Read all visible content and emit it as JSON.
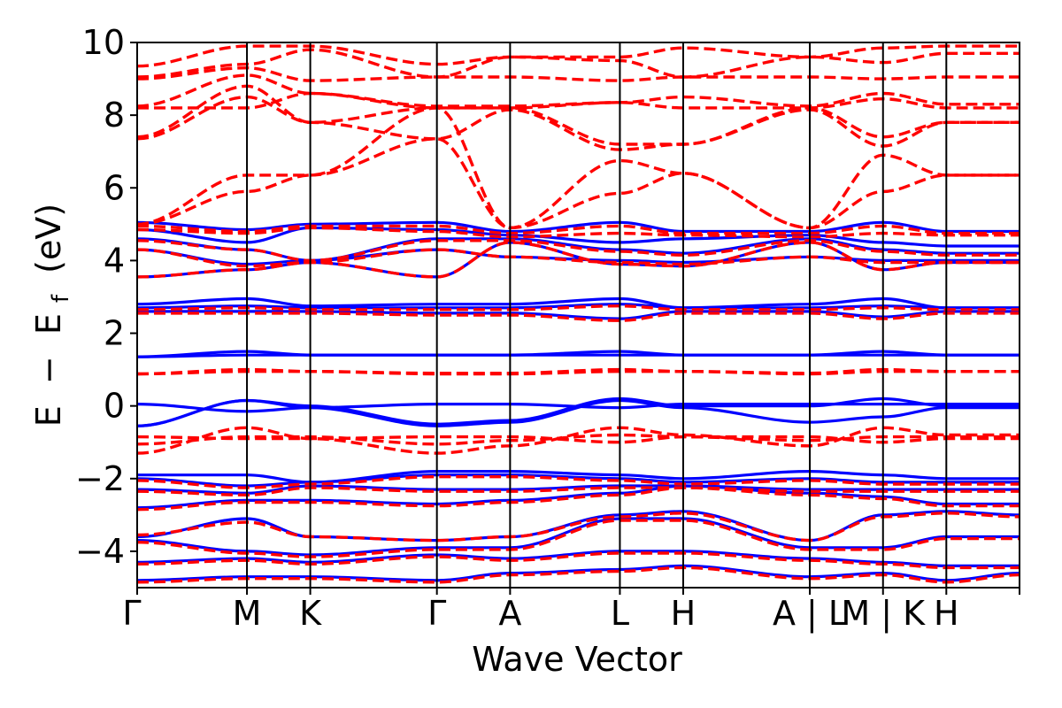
{
  "chart_data": {
    "type": "line",
    "title": "",
    "xlabel": "Wave Vector",
    "ylabel_parts": {
      "e": "E",
      "minus": "−",
      "ef": "E",
      "ef_sub": "f",
      "unit": "(eV)"
    },
    "ylim": [
      -5,
      10
    ],
    "yticks": [
      {
        "value": -4,
        "label": "−4"
      },
      {
        "value": -2,
        "label": "−2"
      },
      {
        "value": 0,
        "label": "0"
      },
      {
        "value": 2,
        "label": "2"
      },
      {
        "value": 4,
        "label": "4"
      },
      {
        "value": 6,
        "label": "6"
      },
      {
        "value": 8,
        "label": "8"
      },
      {
        "value": 10,
        "label": "10"
      }
    ],
    "kpath_lengths": [
      3.0,
      1.73,
      3.46,
      2.0,
      3.0,
      1.73,
      3.46,
      2.0,
      1.73,
      2.0
    ],
    "kpoint_labels": [
      "Γ",
      "M",
      "K",
      "Γ",
      "A",
      "L",
      "H",
      "A | L",
      "M | K",
      "H"
    ],
    "grid": false,
    "legend": "none",
    "colors": {
      "series_a": "#0000ff",
      "series_b": "#ff0000",
      "axes": "#000000"
    },
    "series": [
      {
        "style": "solid",
        "color": "#0000ff",
        "bands": [
          [
            -4.8,
            -4.7,
            -4.7,
            -4.8,
            -4.6,
            -4.5,
            -4.4,
            -4.7,
            -4.6,
            -4.8,
            -4.6
          ],
          [
            -4.3,
            -4.2,
            -4.3,
            -4.1,
            -4.2,
            -4.0,
            -4.0,
            -4.2,
            -4.3,
            -4.4,
            -4.4
          ],
          [
            -3.7,
            -4.0,
            -4.1,
            -3.9,
            -3.9,
            -3.1,
            -3.1,
            -3.9,
            -3.9,
            -3.6,
            -3.6
          ],
          [
            -3.6,
            -3.1,
            -3.6,
            -3.7,
            -3.6,
            -3.0,
            -2.9,
            -3.7,
            -3.0,
            -2.9,
            -3.0
          ],
          [
            -2.8,
            -2.6,
            -2.6,
            -2.7,
            -2.6,
            -2.4,
            -2.2,
            -2.4,
            -2.5,
            -2.7,
            -2.7
          ],
          [
            -2.3,
            -2.4,
            -2.2,
            -2.3,
            -2.3,
            -2.2,
            -2.2,
            -2.3,
            -2.3,
            -2.3,
            -2.3
          ],
          [
            -2.0,
            -2.2,
            -2.1,
            -1.9,
            -1.9,
            -2.0,
            -2.1,
            -2.0,
            -2.1,
            -2.1,
            -2.1
          ],
          [
            -1.9,
            -1.9,
            -2.1,
            -1.8,
            -1.8,
            -1.9,
            -2.0,
            -1.8,
            -1.9,
            -2.0,
            -2.0
          ],
          [
            -0.55,
            0.15,
            -0.05,
            -0.55,
            -0.45,
            0.15,
            -0.05,
            -0.45,
            -0.3,
            -0.05,
            -0.05
          ],
          [
            0.05,
            -0.15,
            -0.05,
            0.05,
            0.05,
            -0.05,
            0.05,
            0.05,
            0.05,
            0.05,
            0.05
          ],
          [
            -0.55,
            0.15,
            0.0,
            -0.5,
            -0.4,
            0.2,
            0.0,
            0.0,
            0.2,
            0.0,
            0.0
          ],
          [
            1.35,
            1.5,
            1.4,
            1.4,
            1.4,
            1.5,
            1.4,
            1.4,
            1.5,
            1.4,
            1.4
          ],
          [
            1.35,
            1.4,
            1.4,
            1.4,
            1.4,
            1.4,
            1.4,
            1.4,
            1.4,
            1.4,
            1.4
          ],
          [
            2.6,
            2.6,
            2.6,
            2.55,
            2.55,
            2.4,
            2.6,
            2.6,
            2.45,
            2.6,
            2.6
          ],
          [
            2.7,
            2.75,
            2.7,
            2.7,
            2.7,
            2.8,
            2.7,
            2.7,
            2.75,
            2.7,
            2.7
          ],
          [
            2.8,
            2.95,
            2.75,
            2.8,
            2.8,
            2.95,
            2.7,
            2.8,
            2.95,
            2.7,
            2.7
          ],
          [
            3.55,
            3.75,
            3.95,
            3.55,
            4.5,
            3.9,
            3.85,
            4.5,
            3.75,
            3.95,
            3.95
          ],
          [
            4.3,
            3.9,
            4.0,
            4.3,
            4.1,
            4.0,
            3.95,
            4.1,
            4.0,
            4.0,
            4.0
          ],
          [
            4.6,
            4.3,
            4.0,
            4.6,
            4.6,
            4.3,
            4.2,
            4.6,
            4.3,
            4.2,
            4.2
          ],
          [
            4.85,
            4.5,
            4.9,
            4.85,
            4.7,
            4.5,
            4.6,
            4.7,
            4.5,
            4.4,
            4.4
          ],
          [
            5.05,
            4.85,
            5.0,
            5.05,
            4.8,
            5.05,
            4.8,
            4.8,
            5.05,
            4.8,
            4.8
          ]
        ]
      },
      {
        "style": "dashed",
        "color": "#ff0000",
        "bands": [
          [
            -4.85,
            -4.75,
            -4.75,
            -4.85,
            -4.65,
            -4.55,
            -4.45,
            -4.75,
            -4.65,
            -4.85,
            -4.65
          ],
          [
            -4.35,
            -4.25,
            -4.35,
            -4.15,
            -4.25,
            -4.05,
            -4.05,
            -4.25,
            -4.35,
            -4.45,
            -4.45
          ],
          [
            -3.75,
            -4.05,
            -4.15,
            -3.95,
            -3.95,
            -3.15,
            -3.15,
            -3.95,
            -3.95,
            -3.65,
            -3.65
          ],
          [
            -3.55,
            -3.2,
            -3.6,
            -3.7,
            -3.6,
            -3.05,
            -2.95,
            -3.7,
            -3.05,
            -2.95,
            -3.05
          ],
          [
            -2.85,
            -2.65,
            -2.65,
            -2.75,
            -2.65,
            -2.45,
            -2.25,
            -2.45,
            -2.55,
            -2.75,
            -2.75
          ],
          [
            -2.35,
            -2.45,
            -2.25,
            -2.35,
            -2.35,
            -2.25,
            -2.25,
            -2.35,
            -2.35,
            -2.35,
            -2.35
          ],
          [
            -2.05,
            -2.25,
            -2.15,
            -1.95,
            -1.95,
            -2.05,
            -2.15,
            -2.05,
            -2.15,
            -2.15,
            -2.15
          ],
          [
            -1.3,
            -0.6,
            -0.9,
            -1.3,
            -1.1,
            -0.6,
            -0.8,
            -1.1,
            -0.6,
            -0.8,
            -0.8
          ],
          [
            -1.05,
            -0.85,
            -0.85,
            -1.05,
            -0.95,
            -0.8,
            -0.85,
            -0.95,
            -0.85,
            -0.85,
            -0.85
          ],
          [
            -0.85,
            -0.9,
            -0.9,
            -0.85,
            -0.85,
            -1.0,
            -0.85,
            -0.85,
            -1.0,
            -0.9,
            -0.9
          ],
          [
            0.88,
            1.0,
            0.95,
            0.9,
            0.9,
            1.0,
            0.95,
            0.9,
            1.0,
            0.95,
            0.95
          ],
          [
            0.88,
            0.95,
            0.95,
            0.88,
            0.88,
            0.95,
            0.95,
            0.88,
            0.95,
            0.95,
            0.95
          ],
          [
            2.55,
            2.55,
            2.55,
            2.5,
            2.5,
            2.35,
            2.55,
            2.55,
            2.4,
            2.55,
            2.55
          ],
          [
            2.65,
            2.7,
            2.65,
            2.65,
            2.65,
            2.75,
            2.65,
            2.65,
            2.7,
            2.65,
            2.65
          ],
          [
            3.55,
            3.75,
            3.95,
            3.55,
            4.5,
            3.9,
            3.85,
            4.5,
            3.75,
            3.95,
            3.95
          ],
          [
            4.3,
            3.85,
            3.95,
            4.3,
            4.1,
            3.95,
            3.9,
            4.1,
            3.95,
            3.95,
            3.95
          ],
          [
            4.55,
            4.3,
            4.0,
            4.55,
            4.55,
            4.25,
            4.15,
            4.55,
            4.25,
            4.15,
            4.15
          ],
          [
            4.85,
            4.75,
            4.9,
            4.8,
            4.65,
            4.75,
            4.7,
            4.65,
            4.75,
            4.7,
            4.7
          ],
          [
            4.95,
            4.8,
            4.95,
            4.95,
            4.75,
            4.95,
            4.75,
            4.75,
            4.95,
            4.75,
            4.75
          ],
          [
            5.0,
            5.9,
            6.35,
            8.2,
            4.9,
            6.75,
            6.4,
            4.9,
            5.9,
            6.35,
            6.35
          ],
          [
            5.0,
            6.35,
            6.35,
            7.35,
            4.9,
            5.85,
            6.4,
            4.9,
            6.9,
            6.35,
            6.35
          ],
          [
            7.35,
            8.5,
            7.8,
            7.35,
            8.15,
            7.05,
            7.2,
            8.15,
            7.15,
            7.8,
            7.8
          ],
          [
            7.4,
            8.8,
            7.8,
            8.2,
            8.2,
            7.2,
            7.2,
            8.2,
            7.4,
            7.8,
            7.8
          ],
          [
            8.2,
            8.2,
            8.6,
            8.2,
            8.2,
            8.35,
            8.2,
            8.2,
            8.45,
            8.2,
            8.2
          ],
          [
            8.25,
            9.1,
            8.6,
            8.25,
            8.25,
            8.35,
            8.5,
            8.25,
            8.6,
            8.3,
            8.3
          ],
          [
            9.0,
            9.3,
            8.95,
            9.05,
            9.05,
            8.95,
            9.05,
            9.05,
            9.0,
            9.05,
            9.05
          ],
          [
            9.05,
            9.4,
            9.8,
            9.05,
            9.6,
            9.5,
            9.05,
            9.6,
            9.45,
            9.7,
            9.7
          ],
          [
            9.35,
            9.9,
            9.9,
            9.4,
            9.6,
            9.6,
            9.85,
            9.6,
            9.85,
            9.9,
            9.9
          ]
        ]
      }
    ]
  }
}
